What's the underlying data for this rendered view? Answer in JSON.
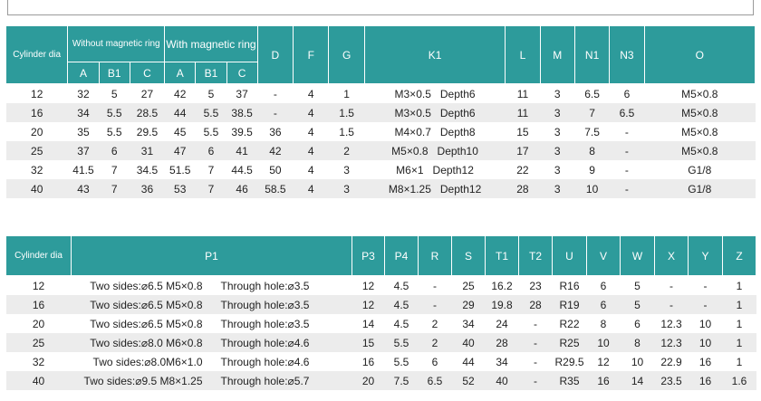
{
  "table1": {
    "group_headers": {
      "cylinder_dia": "Cylinder dia",
      "without": "Without magnetic ring",
      "with": "With magnetic ring",
      "D": "D",
      "F": "F",
      "G": "G",
      "K1": "K1",
      "L": "L",
      "M": "M",
      "N1": "N1",
      "N3": "N3",
      "O": "O"
    },
    "sub_headers": [
      "A",
      "B1",
      "C",
      "A",
      "B1",
      "C"
    ],
    "rows": [
      [
        "12",
        "32",
        "5",
        "27",
        "42",
        "5",
        "37",
        "-",
        "4",
        "1",
        "M3×0.5   Depth6",
        "11",
        "3",
        "6.5",
        "6",
        "M5×0.8"
      ],
      [
        "16",
        "34",
        "5.5",
        "28.5",
        "44",
        "5.5",
        "38.5",
        "-",
        "4",
        "1.5",
        "M3×0.5   Depth6",
        "11",
        "3",
        "7",
        "6.5",
        "M5×0.8"
      ],
      [
        "20",
        "35",
        "5.5",
        "29.5",
        "45",
        "5.5",
        "39.5",
        "36",
        "4",
        "1.5",
        "M4×0.7   Depth8",
        "15",
        "3",
        "7.5",
        "-",
        "M5×0.8"
      ],
      [
        "25",
        "37",
        "6",
        "31",
        "47",
        "6",
        "41",
        "42",
        "4",
        "2",
        "M5×0.8   Depth10",
        "17",
        "3",
        "8",
        "-",
        "M5×0.8"
      ],
      [
        "32",
        "41.5",
        "7",
        "34.5",
        "51.5",
        "7",
        "44.5",
        "50",
        "4",
        "3",
        "M6×1   Depth12",
        "22",
        "3",
        "9",
        "-",
        "G1/8"
      ],
      [
        "40",
        "43",
        "7",
        "36",
        "53",
        "7",
        "46",
        "58.5",
        "4",
        "3",
        "M8×1.25   Depth12",
        "28",
        "3",
        "10",
        "-",
        "G1/8"
      ]
    ]
  },
  "table2": {
    "headers": [
      "Cylinder dia",
      "P1",
      "P3",
      "P4",
      "R",
      "S",
      "T1",
      "T2",
      "U",
      "V",
      "W",
      "X",
      "Y",
      "Z"
    ],
    "rows": [
      [
        "12",
        "Two sides:⌀6.5 M5×0.8",
        "Through hole:⌀3.5",
        "12",
        "4.5",
        "-",
        "25",
        "16.2",
        "23",
        "R16",
        "6",
        "5",
        "-",
        "-",
        "1"
      ],
      [
        "16",
        "Two sides:⌀6.5 M5×0.8",
        "Through hole:⌀3.5",
        "12",
        "4.5",
        "-",
        "29",
        "19.8",
        "28",
        "R19",
        "6",
        "5",
        "-",
        "-",
        "1"
      ],
      [
        "20",
        "Two sides:⌀6.5 M5×0.8",
        "Through hole:⌀3.5",
        "14",
        "4.5",
        "2",
        "34",
        "24",
        "-",
        "R22",
        "8",
        "6",
        "12.3",
        "10",
        "1"
      ],
      [
        "25",
        "Two sides:⌀8.0 M6×0.8",
        "Through hole:⌀4.6",
        "15",
        "5.5",
        "2",
        "40",
        "28",
        "-",
        "R25",
        "10",
        "8",
        "12.3",
        "10",
        "1"
      ],
      [
        "32",
        "Two sides:⌀8.0M6×1.0",
        "Through hole:⌀4.6",
        "16",
        "5.5",
        "6",
        "44",
        "34",
        "-",
        "R29.5",
        "12",
        "10",
        "22.9",
        "16",
        "1"
      ],
      [
        "40",
        "Two sides:⌀9.5 M8×1.25",
        "Through hole:⌀5.7",
        "20",
        "7.5",
        "6.5",
        "52",
        "40",
        "-",
        "R35",
        "16",
        "14",
        "23.5",
        "16",
        "1.6"
      ]
    ]
  },
  "colors": {
    "header_bg": "#2d9b9b",
    "header_text": "#ffffff",
    "stripe": "#ececec"
  }
}
